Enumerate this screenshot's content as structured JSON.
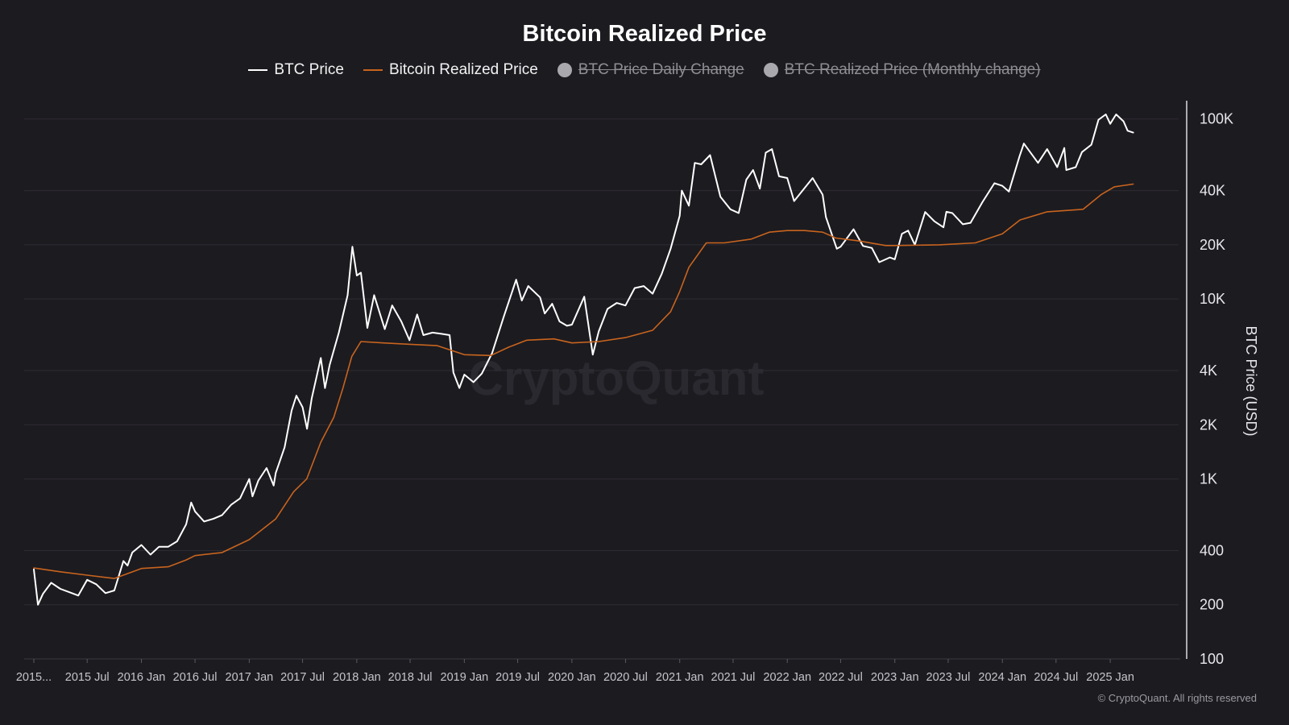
{
  "colors": {
    "background": "#1c1b20",
    "btc_price": "#ffffff",
    "realized_price": "#c8641e",
    "disabled": "#a8a8ad",
    "grid": "#2e2d33",
    "text": "#cfcfd4"
  },
  "watermark": "CryptoQuant",
  "copyright": "© CryptoQuant. All rights reserved",
  "legend": [
    {
      "label": "BTC Price",
      "type": "line",
      "color": "#ffffff",
      "enabled": true
    },
    {
      "label": "Bitcoin Realized Price",
      "type": "line",
      "color": "#c8641e",
      "enabled": true
    },
    {
      "label": "BTC Price Daily Change",
      "type": "dot",
      "color": "#a8a8ad",
      "enabled": false
    },
    {
      "label": "BTC Realized Price (Monthly change)",
      "type": "dot",
      "color": "#a8a8ad",
      "enabled": false
    }
  ],
  "chart_data": {
    "type": "line",
    "title": "Bitcoin Realized Price",
    "ylabel": "BTC Price (USD)",
    "yscale": "log",
    "ylim": [
      100,
      120000
    ],
    "y_ticks": [
      {
        "value": 100,
        "label": "100"
      },
      {
        "value": 200,
        "label": "200"
      },
      {
        "value": 400,
        "label": "400"
      },
      {
        "value": 1000,
        "label": "1K"
      },
      {
        "value": 2000,
        "label": "2K"
      },
      {
        "value": 4000,
        "label": "4K"
      },
      {
        "value": 10000,
        "label": "10K"
      },
      {
        "value": 20000,
        "label": "20K"
      },
      {
        "value": 40000,
        "label": "40K"
      },
      {
        "value": 100000,
        "label": "100K"
      }
    ],
    "xlim": [
      "2015-01-01",
      "2025-05-01"
    ],
    "x_ticks": [
      {
        "date": "2015-01-01",
        "label": "2015..."
      },
      {
        "date": "2015-07-01",
        "label": "2015 Jul"
      },
      {
        "date": "2016-01-01",
        "label": "2016 Jan"
      },
      {
        "date": "2016-07-01",
        "label": "2016 Jul"
      },
      {
        "date": "2017-01-01",
        "label": "2017 Jan"
      },
      {
        "date": "2017-07-01",
        "label": "2017 Jul"
      },
      {
        "date": "2018-01-01",
        "label": "2018 Jan"
      },
      {
        "date": "2018-07-01",
        "label": "2018 Jul"
      },
      {
        "date": "2019-01-01",
        "label": "2019 Jan"
      },
      {
        "date": "2019-07-01",
        "label": "2019 Jul"
      },
      {
        "date": "2020-01-01",
        "label": "2020 Jan"
      },
      {
        "date": "2020-07-01",
        "label": "2020 Jul"
      },
      {
        "date": "2021-01-01",
        "label": "2021 Jan"
      },
      {
        "date": "2021-07-01",
        "label": "2021 Jul"
      },
      {
        "date": "2022-01-01",
        "label": "2022 Jan"
      },
      {
        "date": "2022-07-01",
        "label": "2022 Jul"
      },
      {
        "date": "2023-01-01",
        "label": "2023 Jan"
      },
      {
        "date": "2023-07-01",
        "label": "2023 Jul"
      },
      {
        "date": "2024-01-01",
        "label": "2024 Jan"
      },
      {
        "date": "2024-07-01",
        "label": "2024 Jul"
      },
      {
        "date": "2025-01-01",
        "label": "2025 Jan"
      }
    ],
    "series": [
      {
        "name": "BTC Price",
        "color": "#ffffff",
        "points": [
          [
            "2015-01-01",
            315
          ],
          [
            "2015-01-15",
            200
          ],
          [
            "2015-02-01",
            230
          ],
          [
            "2015-03-01",
            265
          ],
          [
            "2015-04-01",
            245
          ],
          [
            "2015-05-01",
            235
          ],
          [
            "2015-06-01",
            225
          ],
          [
            "2015-07-01",
            275
          ],
          [
            "2015-08-01",
            260
          ],
          [
            "2015-09-01",
            232
          ],
          [
            "2015-10-01",
            240
          ],
          [
            "2015-11-01",
            350
          ],
          [
            "2015-11-15",
            330
          ],
          [
            "2015-12-01",
            390
          ],
          [
            "2016-01-01",
            430
          ],
          [
            "2016-02-01",
            380
          ],
          [
            "2016-03-01",
            420
          ],
          [
            "2016-04-01",
            420
          ],
          [
            "2016-05-01",
            450
          ],
          [
            "2016-06-01",
            560
          ],
          [
            "2016-06-18",
            740
          ],
          [
            "2016-07-01",
            660
          ],
          [
            "2016-08-01",
            580
          ],
          [
            "2016-09-01",
            600
          ],
          [
            "2016-10-01",
            630
          ],
          [
            "2016-11-01",
            720
          ],
          [
            "2016-12-01",
            780
          ],
          [
            "2017-01-01",
            1000
          ],
          [
            "2017-01-12",
            800
          ],
          [
            "2017-02-01",
            980
          ],
          [
            "2017-03-01",
            1150
          ],
          [
            "2017-03-25",
            920
          ],
          [
            "2017-04-01",
            1080
          ],
          [
            "2017-05-01",
            1500
          ],
          [
            "2017-05-25",
            2400
          ],
          [
            "2017-06-10",
            2900
          ],
          [
            "2017-07-01",
            2500
          ],
          [
            "2017-07-16",
            1900
          ],
          [
            "2017-08-01",
            2800
          ],
          [
            "2017-09-01",
            4700
          ],
          [
            "2017-09-15",
            3200
          ],
          [
            "2017-10-01",
            4300
          ],
          [
            "2017-11-01",
            6500
          ],
          [
            "2017-12-01",
            10500
          ],
          [
            "2017-12-17",
            19500
          ],
          [
            "2018-01-01",
            13500
          ],
          [
            "2018-01-15",
            14000
          ],
          [
            "2018-02-06",
            6900
          ],
          [
            "2018-03-01",
            10500
          ],
          [
            "2018-04-06",
            6800
          ],
          [
            "2018-05-01",
            9200
          ],
          [
            "2018-06-01",
            7500
          ],
          [
            "2018-06-29",
            5900
          ],
          [
            "2018-07-25",
            8200
          ],
          [
            "2018-08-15",
            6300
          ],
          [
            "2018-09-15",
            6500
          ],
          [
            "2018-10-15",
            6400
          ],
          [
            "2018-11-12",
            6300
          ],
          [
            "2018-11-25",
            3900
          ],
          [
            "2018-12-15",
            3200
          ],
          [
            "2019-01-01",
            3800
          ],
          [
            "2019-02-01",
            3450
          ],
          [
            "2019-03-01",
            3850
          ],
          [
            "2019-04-05",
            5000
          ],
          [
            "2019-05-15",
            8000
          ],
          [
            "2019-06-26",
            12800
          ],
          [
            "2019-07-15",
            9800
          ],
          [
            "2019-08-06",
            11800
          ],
          [
            "2019-09-15",
            10200
          ],
          [
            "2019-10-01",
            8300
          ],
          [
            "2019-10-26",
            9400
          ],
          [
            "2019-11-20",
            7500
          ],
          [
            "2019-12-15",
            7100
          ],
          [
            "2020-01-01",
            7200
          ],
          [
            "2020-02-12",
            10300
          ],
          [
            "2020-03-12",
            4900
          ],
          [
            "2020-04-01",
            6600
          ],
          [
            "2020-05-01",
            8800
          ],
          [
            "2020-06-01",
            9500
          ],
          [
            "2020-07-01",
            9200
          ],
          [
            "2020-08-01",
            11500
          ],
          [
            "2020-09-01",
            11800
          ],
          [
            "2020-10-01",
            10700
          ],
          [
            "2020-11-01",
            13800
          ],
          [
            "2020-12-01",
            19000
          ],
          [
            "2021-01-01",
            29000
          ],
          [
            "2021-01-08",
            40000
          ],
          [
            "2021-02-01",
            33000
          ],
          [
            "2021-02-21",
            57000
          ],
          [
            "2021-03-15",
            56000
          ],
          [
            "2021-04-14",
            63000
          ],
          [
            "2021-05-19",
            37000
          ],
          [
            "2021-06-22",
            31500
          ],
          [
            "2021-07-20",
            30000
          ],
          [
            "2021-08-15",
            46000
          ],
          [
            "2021-09-07",
            52000
          ],
          [
            "2021-09-30",
            41000
          ],
          [
            "2021-10-20",
            65000
          ],
          [
            "2021-11-10",
            68000
          ],
          [
            "2021-12-04",
            48000
          ],
          [
            "2022-01-01",
            47000
          ],
          [
            "2022-01-24",
            35000
          ],
          [
            "2022-03-28",
            47000
          ],
          [
            "2022-05-01",
            38000
          ],
          [
            "2022-05-12",
            28500
          ],
          [
            "2022-06-18",
            19000
          ],
          [
            "2022-07-01",
            19500
          ],
          [
            "2022-08-14",
            24400
          ],
          [
            "2022-09-15",
            19700
          ],
          [
            "2022-10-15",
            19200
          ],
          [
            "2022-11-09",
            16000
          ],
          [
            "2022-12-15",
            17000
          ],
          [
            "2023-01-01",
            16600
          ],
          [
            "2023-01-25",
            23000
          ],
          [
            "2023-02-15",
            24000
          ],
          [
            "2023-03-10",
            20000
          ],
          [
            "2023-04-14",
            30400
          ],
          [
            "2023-05-15",
            27000
          ],
          [
            "2023-06-15",
            25000
          ],
          [
            "2023-06-25",
            30500
          ],
          [
            "2023-07-15",
            30000
          ],
          [
            "2023-08-20",
            26000
          ],
          [
            "2023-09-15",
            26500
          ],
          [
            "2023-10-25",
            34500
          ],
          [
            "2023-12-05",
            44000
          ],
          [
            "2024-01-01",
            42500
          ],
          [
            "2024-01-23",
            39500
          ],
          [
            "2024-02-28",
            62000
          ],
          [
            "2024-03-14",
            73000
          ],
          [
            "2024-05-01",
            57000
          ],
          [
            "2024-06-01",
            68000
          ],
          [
            "2024-07-05",
            54000
          ],
          [
            "2024-07-29",
            69000
          ],
          [
            "2024-08-05",
            52000
          ],
          [
            "2024-09-06",
            54000
          ],
          [
            "2024-09-27",
            65500
          ],
          [
            "2024-10-29",
            72000
          ],
          [
            "2024-11-22",
            99000
          ],
          [
            "2024-12-17",
            106000
          ],
          [
            "2025-01-01",
            94000
          ],
          [
            "2025-01-21",
            106000
          ],
          [
            "2025-02-15",
            97000
          ],
          [
            "2025-03-01",
            86000
          ],
          [
            "2025-03-20",
            84000
          ]
        ]
      },
      {
        "name": "Bitcoin Realized Price",
        "color": "#c8641e",
        "points": [
          [
            "2015-01-01",
            320
          ],
          [
            "2015-04-01",
            305
          ],
          [
            "2015-07-01",
            292
          ],
          [
            "2015-10-01",
            280
          ],
          [
            "2016-01-01",
            318
          ],
          [
            "2016-04-01",
            325
          ],
          [
            "2016-06-01",
            355
          ],
          [
            "2016-07-01",
            375
          ],
          [
            "2016-10-01",
            390
          ],
          [
            "2017-01-01",
            460
          ],
          [
            "2017-04-01",
            600
          ],
          [
            "2017-06-01",
            850
          ],
          [
            "2017-07-15",
            1000
          ],
          [
            "2017-09-01",
            1600
          ],
          [
            "2017-10-15",
            2200
          ],
          [
            "2017-11-15",
            3200
          ],
          [
            "2017-12-15",
            4800
          ],
          [
            "2018-01-15",
            5800
          ],
          [
            "2018-04-01",
            5700
          ],
          [
            "2018-07-01",
            5600
          ],
          [
            "2018-10-01",
            5500
          ],
          [
            "2018-12-01",
            5100
          ],
          [
            "2019-01-01",
            4900
          ],
          [
            "2019-04-01",
            4850
          ],
          [
            "2019-06-01",
            5400
          ],
          [
            "2019-08-01",
            5900
          ],
          [
            "2019-11-01",
            6000
          ],
          [
            "2020-01-01",
            5700
          ],
          [
            "2020-04-01",
            5800
          ],
          [
            "2020-07-01",
            6100
          ],
          [
            "2020-10-01",
            6700
          ],
          [
            "2020-12-01",
            8500
          ],
          [
            "2021-01-01",
            11000
          ],
          [
            "2021-02-01",
            15000
          ],
          [
            "2021-04-01",
            20500
          ],
          [
            "2021-06-01",
            20500
          ],
          [
            "2021-09-01",
            21500
          ],
          [
            "2021-11-01",
            23500
          ],
          [
            "2022-01-01",
            24000
          ],
          [
            "2022-03-01",
            24000
          ],
          [
            "2022-05-01",
            23500
          ],
          [
            "2022-06-15",
            21800
          ],
          [
            "2022-09-01",
            21000
          ],
          [
            "2022-12-01",
            19800
          ],
          [
            "2023-01-01",
            19800
          ],
          [
            "2023-06-01",
            20000
          ],
          [
            "2023-10-01",
            20500
          ],
          [
            "2024-01-01",
            23000
          ],
          [
            "2024-03-01",
            27500
          ],
          [
            "2024-06-01",
            30500
          ],
          [
            "2024-10-01",
            31500
          ],
          [
            "2024-12-01",
            38000
          ],
          [
            "2025-01-15",
            42000
          ],
          [
            "2025-03-20",
            43500
          ]
        ]
      }
    ]
  }
}
